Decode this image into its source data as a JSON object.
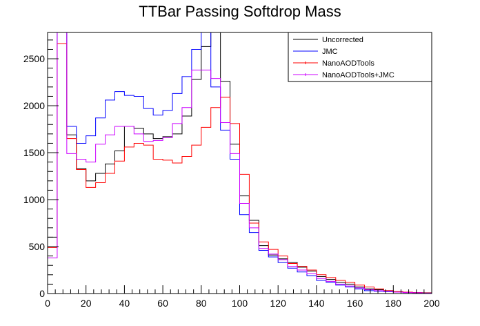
{
  "chart_data": {
    "type": "line",
    "style": "step-histogram",
    "title": "TTBar Passing Softdrop Mass",
    "xlabel": "",
    "ylabel": "",
    "xlim": [
      0,
      200
    ],
    "ylim": [
      0,
      2780
    ],
    "bin_width": 5,
    "x_ticks": [
      "0",
      "20",
      "40",
      "60",
      "80",
      "100",
      "120",
      "140",
      "160",
      "180",
      "200"
    ],
    "y_ticks": [
      "0",
      "500",
      "1000",
      "1500",
      "2000",
      "2500"
    ],
    "grid": false,
    "legend_position": "top-right",
    "series": [
      {
        "name": "Uncorrected",
        "color": "#000000",
        "values": [
          600,
          5000,
          1690,
          1330,
          1200,
          1280,
          1380,
          1520,
          1780,
          1760,
          1700,
          1650,
          1670,
          1700,
          1890,
          2280,
          2630,
          2780,
          2260,
          1590,
          1040,
          780,
          510,
          410,
          370,
          330,
          280,
          240,
          180,
          150,
          120,
          100,
          70,
          50,
          40,
          30,
          20,
          15,
          10,
          8
        ]
      },
      {
        "name": "JMC",
        "color": "#0000ff",
        "values": [
          500,
          5000,
          1780,
          1600,
          1680,
          1870,
          2060,
          2150,
          2110,
          2100,
          1970,
          1900,
          1950,
          2130,
          2310,
          2600,
          2880,
          2200,
          1740,
          1430,
          840,
          650,
          460,
          390,
          330,
          270,
          230,
          190,
          140,
          120,
          90,
          70,
          50,
          30,
          25,
          20,
          15,
          10,
          8,
          5
        ]
      },
      {
        "name": "NanoAODTools",
        "color": "#ff0000",
        "values": [
          490,
          2660,
          1650,
          1320,
          1130,
          1180,
          1280,
          1410,
          1560,
          1600,
          1580,
          1430,
          1420,
          1390,
          1460,
          1580,
          1770,
          1980,
          2090,
          1810,
          1270,
          750,
          550,
          470,
          400,
          320,
          290,
          250,
          200,
          170,
          140,
          120,
          90,
          70,
          50,
          30,
          20,
          15,
          10,
          6
        ]
      },
      {
        "name": "NanoAODTools+JMC",
        "color": "#cc00ff",
        "values": [
          380,
          5000,
          1490,
          1430,
          1400,
          1590,
          1690,
          1780,
          1780,
          1700,
          1620,
          1630,
          1660,
          1810,
          1980,
          2380,
          2380,
          2290,
          1820,
          1490,
          960,
          700,
          480,
          420,
          360,
          290,
          250,
          210,
          160,
          130,
          100,
          80,
          60,
          40,
          30,
          25,
          15,
          10,
          8,
          5
        ]
      }
    ]
  }
}
